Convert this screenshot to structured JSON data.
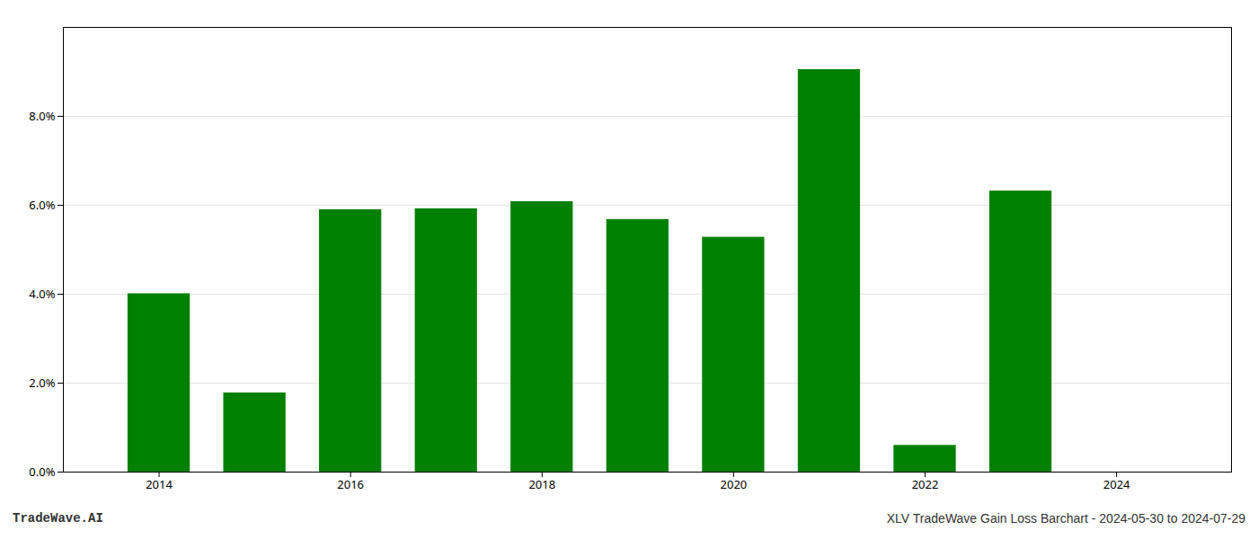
{
  "chart_data": {
    "type": "bar",
    "x": [
      2014,
      2015,
      2016,
      2017,
      2018,
      2019,
      2020,
      2021,
      2022,
      2023
    ],
    "values": [
      0.0401,
      0.0178,
      0.059,
      0.0592,
      0.0608,
      0.0568,
      0.0528,
      0.0905,
      0.006,
      0.0632
    ],
    "color": "#008000",
    "xlim": [
      2013.0,
      2025.2
    ],
    "xticks": [
      2014,
      2016,
      2018,
      2020,
      2022,
      2024
    ],
    "ylim": [
      0,
      0.1
    ],
    "yticks": [
      {
        "value": 0.0,
        "label": "0.0%"
      },
      {
        "value": 0.02,
        "label": "2.0%"
      },
      {
        "value": 0.04,
        "label": "4.0%"
      },
      {
        "value": 0.06,
        "label": "6.0%"
      },
      {
        "value": 0.08,
        "label": "8.0%"
      }
    ],
    "grid": true,
    "annotations": [
      "TradeWave.AI",
      "XLV TradeWave Gain Loss Barchart - 2024-05-30 to 2024-07-29"
    ]
  }
}
